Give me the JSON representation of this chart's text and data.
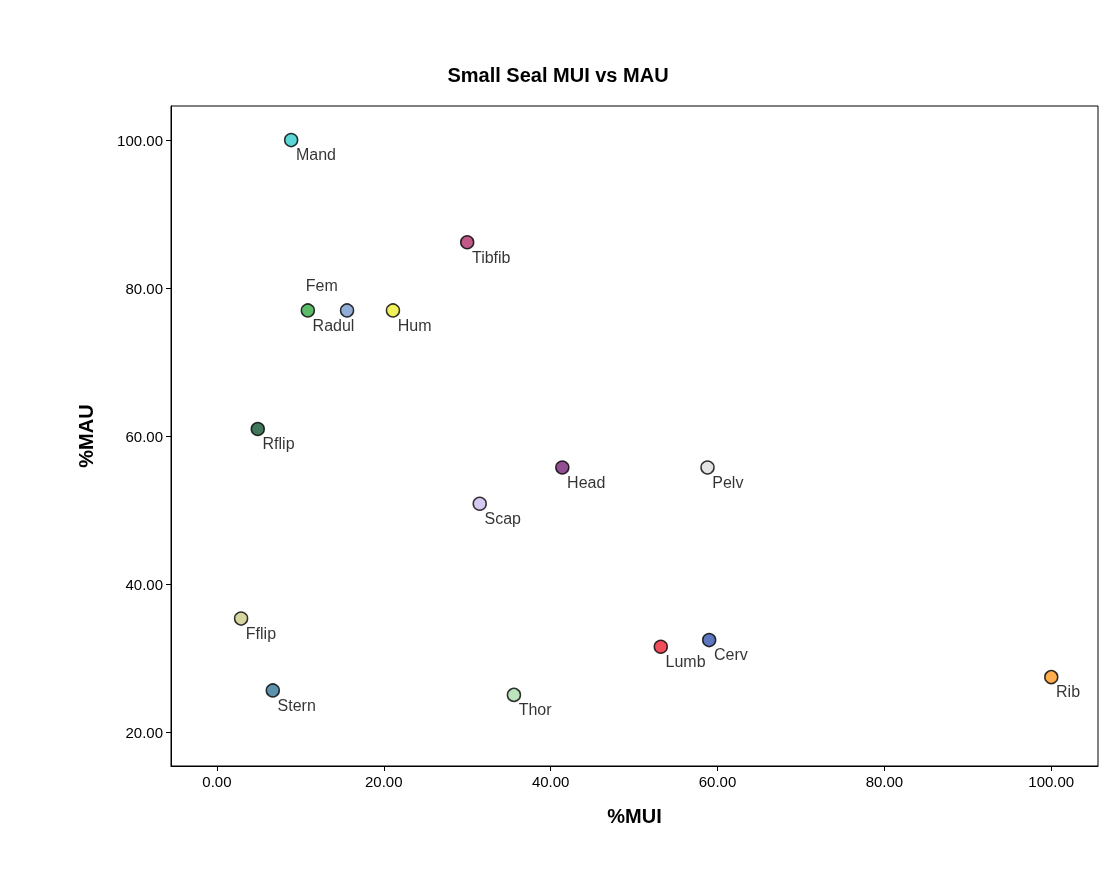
{
  "chart_data": {
    "type": "scatter",
    "title": "Small Seal MUI vs MAU",
    "xlabel": "%MUI",
    "ylabel": "%MAU",
    "marker": "circle",
    "grid": false,
    "legend": false,
    "xlim": [
      -5.5,
      105.6
    ],
    "xticks": [
      {
        "value": 0,
        "label": "0.00"
      },
      {
        "value": 20,
        "label": "20.00"
      },
      {
        "value": 40,
        "label": "40.00"
      },
      {
        "value": 60,
        "label": "60.00"
      },
      {
        "value": 80,
        "label": "80.00"
      },
      {
        "value": 100,
        "label": "100.00"
      }
    ],
    "ylim": [
      15.5,
      104.6
    ],
    "yticks": [
      {
        "value": 20,
        "label": "20.00"
      },
      {
        "value": 40,
        "label": "40.00"
      },
      {
        "value": 60,
        "label": "60.00"
      },
      {
        "value": 80,
        "label": "80.00"
      },
      {
        "value": 100,
        "label": "100.00"
      }
    ],
    "series": [
      {
        "name": "Mand",
        "color": "#33cccc",
        "x": [
          8.9
        ],
        "values": [
          100
        ]
      },
      {
        "name": "Tibfib",
        "color": "#b0306a",
        "x": [
          30.0
        ],
        "values": [
          86.2
        ]
      },
      {
        "name": "Radul",
        "color": "#33aa44",
        "x": [
          10.9
        ],
        "values": [
          77.0
        ]
      },
      {
        "name": "Fem",
        "color": "#7799cc",
        "x": [
          15.6
        ],
        "values": [
          77.0
        ]
      },
      {
        "name": "Hum",
        "color": "#eeee33",
        "x": [
          21.1
        ],
        "values": [
          77.0
        ]
      },
      {
        "name": "Rflip",
        "color": "#115533",
        "x": [
          4.9
        ],
        "values": [
          61.0
        ]
      },
      {
        "name": "Pelv",
        "color": "#dddddd",
        "x": [
          58.8
        ],
        "values": [
          55.8
        ]
      },
      {
        "name": "Head",
        "color": "#772277",
        "x": [
          41.4
        ],
        "values": [
          55.8
        ]
      },
      {
        "name": "Scap",
        "color": "#ccbbee",
        "x": [
          31.5
        ],
        "values": [
          50.9
        ]
      },
      {
        "name": "Fflip",
        "color": "#cccc88",
        "x": [
          2.9
        ],
        "values": [
          35.4
        ]
      },
      {
        "name": "Lumb",
        "color": "#ee2233",
        "x": [
          53.2
        ],
        "values": [
          31.6
        ]
      },
      {
        "name": "Cerv",
        "color": "#3355aa",
        "x": [
          59.0
        ],
        "values": [
          32.5
        ]
      },
      {
        "name": "Rib",
        "color": "#ff9922",
        "x": [
          100
        ],
        "values": [
          27.5
        ]
      },
      {
        "name": "Stern",
        "color": "#337799",
        "x": [
          6.7
        ],
        "values": [
          25.7
        ]
      },
      {
        "name": "Thor",
        "color": "#aaddaa",
        "x": [
          35.6
        ],
        "values": [
          25.1
        ]
      }
    ]
  }
}
